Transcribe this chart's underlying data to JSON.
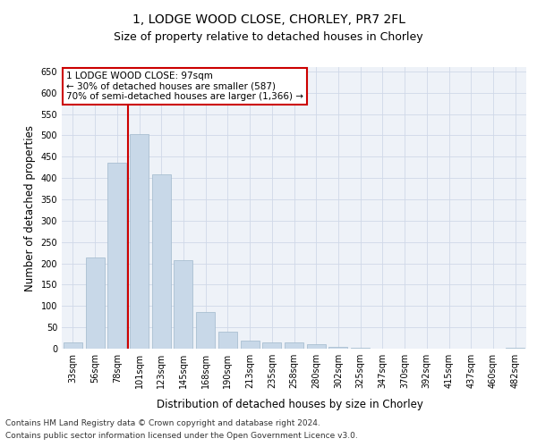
{
  "title_line1": "1, LODGE WOOD CLOSE, CHORLEY, PR7 2FL",
  "title_line2": "Size of property relative to detached houses in Chorley",
  "xlabel": "Distribution of detached houses by size in Chorley",
  "ylabel": "Number of detached properties",
  "footer_line1": "Contains HM Land Registry data © Crown copyright and database right 2024.",
  "footer_line2": "Contains public sector information licensed under the Open Government Licence v3.0.",
  "categories": [
    "33sqm",
    "56sqm",
    "78sqm",
    "101sqm",
    "123sqm",
    "145sqm",
    "168sqm",
    "190sqm",
    "213sqm",
    "235sqm",
    "258sqm",
    "280sqm",
    "302sqm",
    "325sqm",
    "347sqm",
    "370sqm",
    "392sqm",
    "415sqm",
    "437sqm",
    "460sqm",
    "482sqm"
  ],
  "values": [
    15,
    213,
    435,
    502,
    408,
    208,
    85,
    40,
    18,
    15,
    15,
    10,
    5,
    2,
    1,
    1,
    1,
    0,
    0,
    0,
    3
  ],
  "bar_color": "#c8d8e8",
  "bar_edge_color": "#a0b8cc",
  "vline_color": "#cc0000",
  "vline_x_index": 3,
  "annotation_text": "1 LODGE WOOD CLOSE: 97sqm\n← 30% of detached houses are smaller (587)\n70% of semi-detached houses are larger (1,366) →",
  "annotation_box_color": "#cc0000",
  "ylim": [
    0,
    660
  ],
  "yticks": [
    0,
    50,
    100,
    150,
    200,
    250,
    300,
    350,
    400,
    450,
    500,
    550,
    600,
    650
  ],
  "grid_color": "#d0d8e8",
  "background_color": "#eef2f8",
  "title1_fontsize": 10,
  "title2_fontsize": 9,
  "axis_label_fontsize": 8.5,
  "tick_fontsize": 7,
  "annotation_fontsize": 7.5,
  "footer_fontsize": 6.5
}
